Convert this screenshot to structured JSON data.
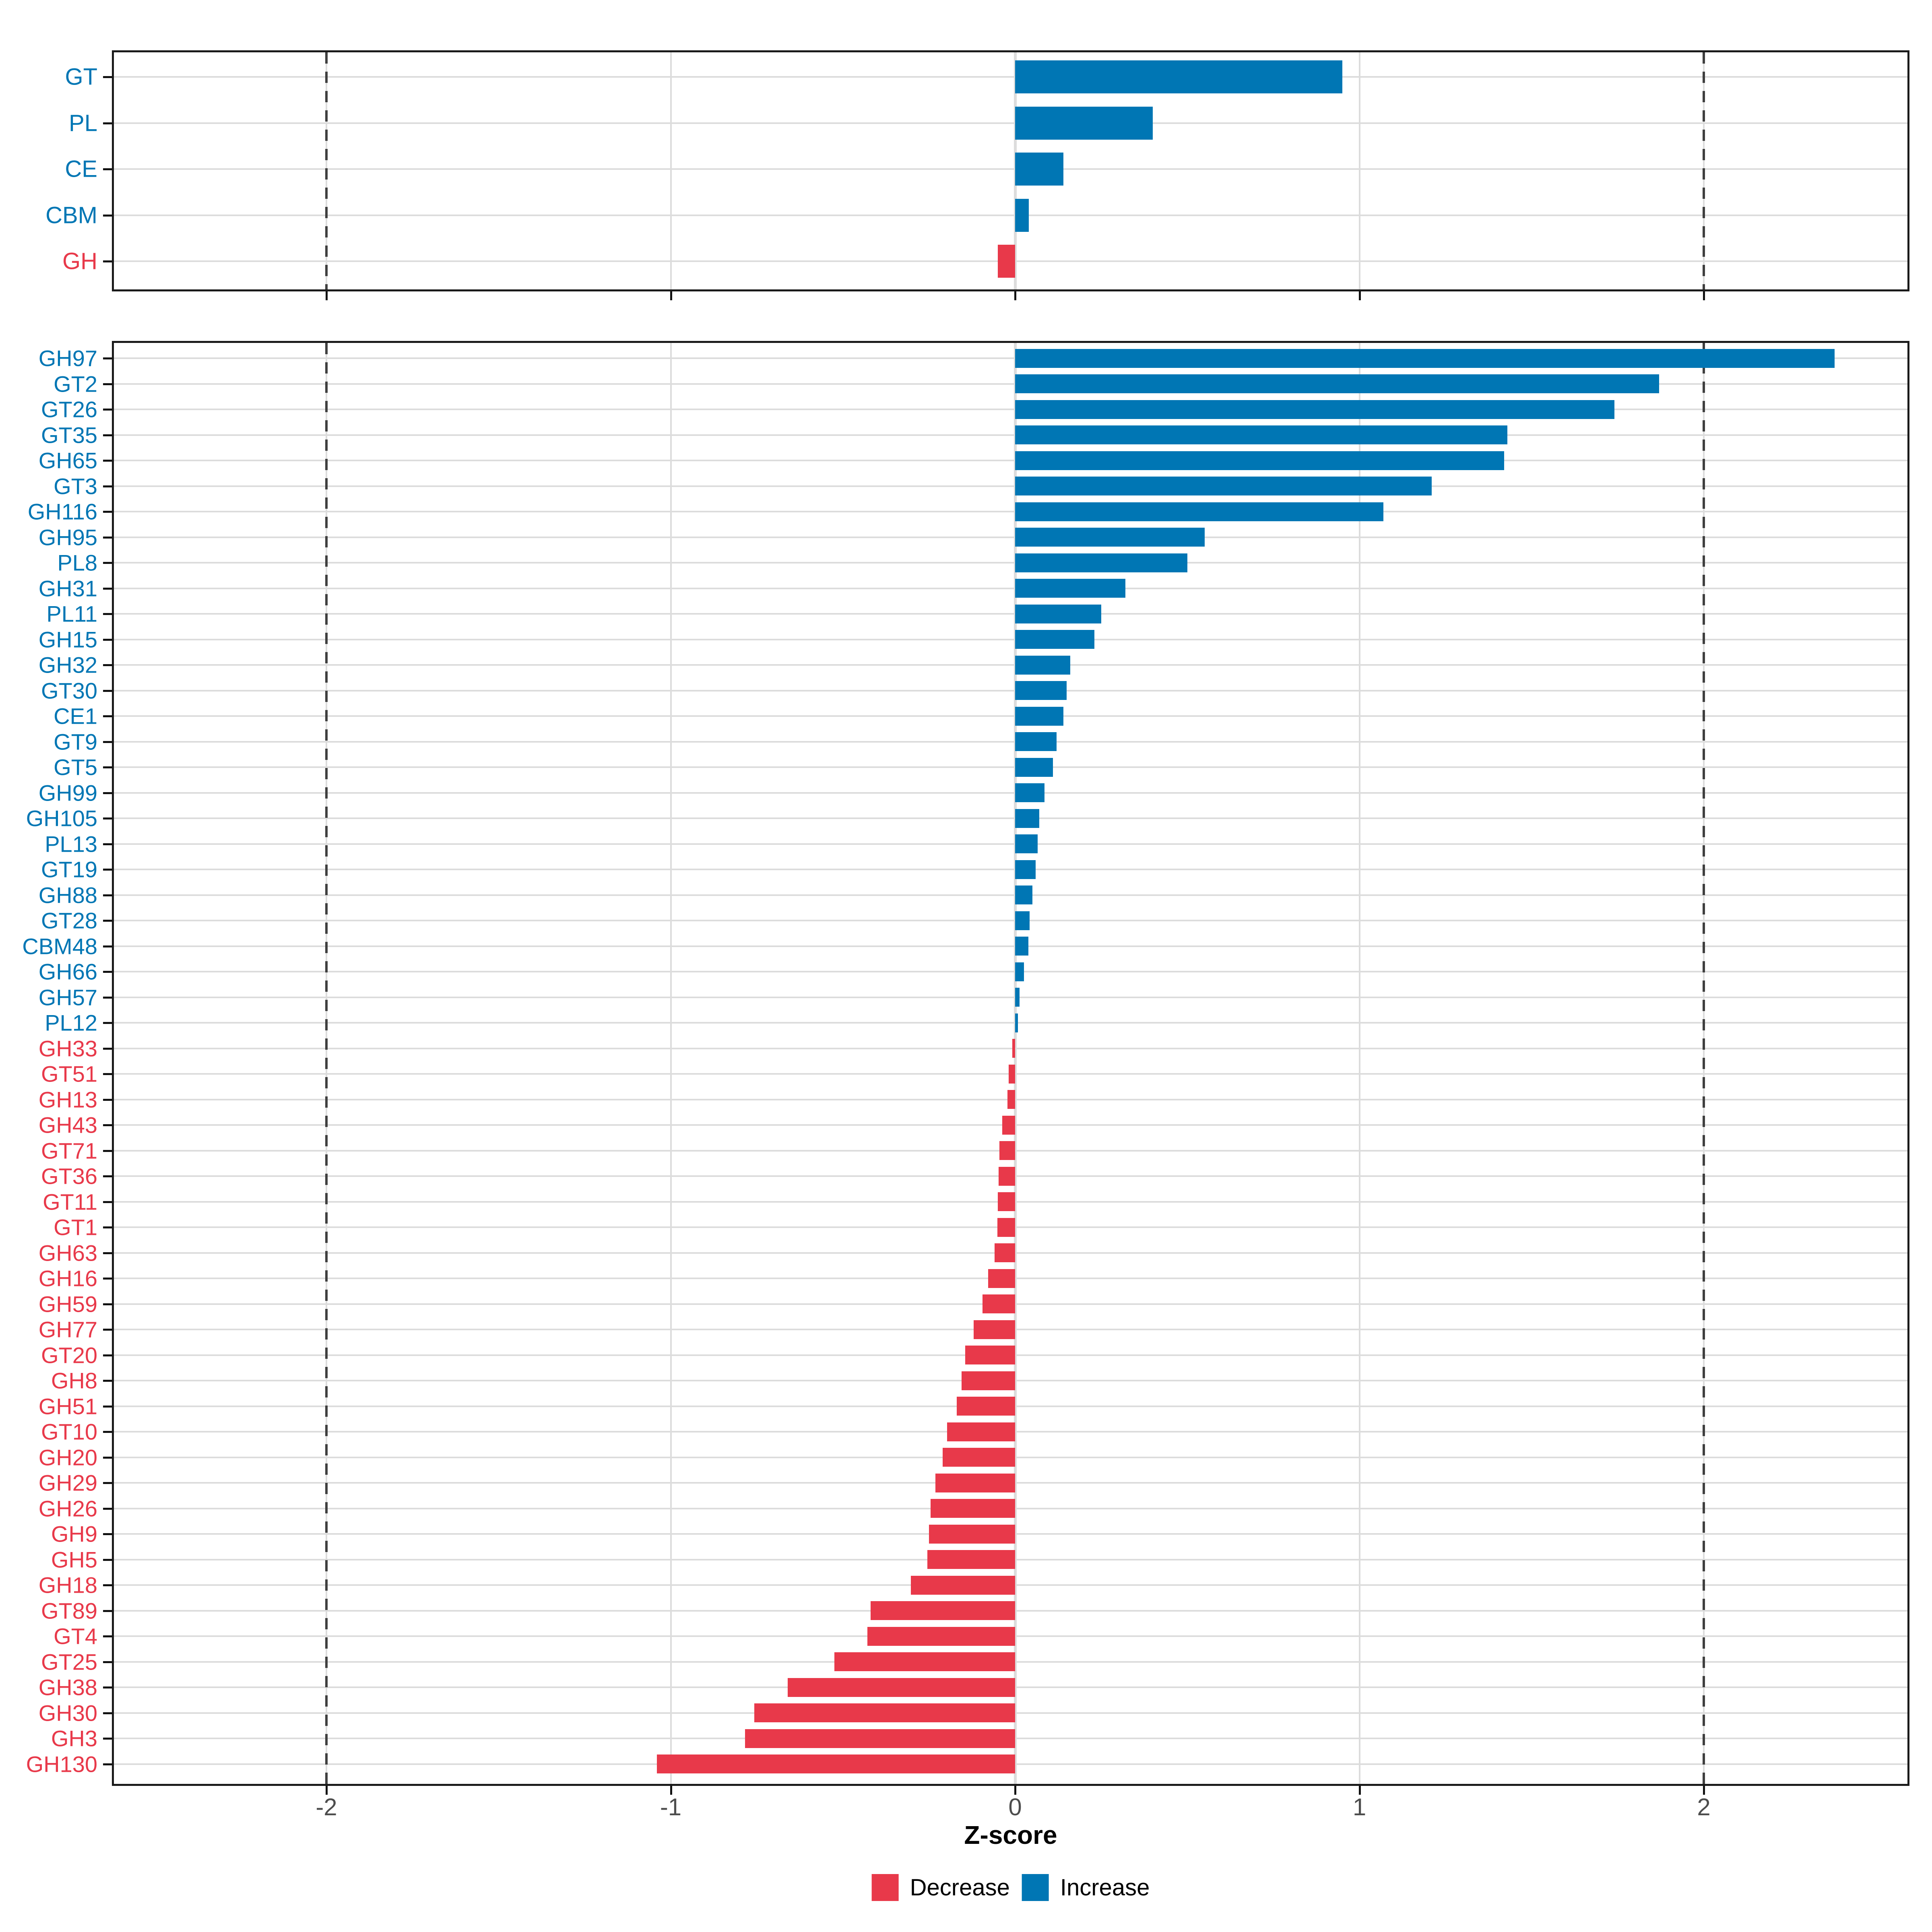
{
  "chart_data": [
    {
      "panel": "category_summary",
      "type": "bar",
      "orientation": "horizontal",
      "categories": [
        "GT",
        "PL",
        "CE",
        "CBM",
        "GH"
      ],
      "values": [
        0.95,
        0.4,
        0.14,
        0.04,
        -0.05
      ],
      "xlim": [
        -2.62,
        2.6
      ],
      "grid": true
    },
    {
      "panel": "cazyme_families",
      "type": "bar",
      "orientation": "horizontal",
      "categories": [
        "GH97",
        "GT2",
        "GT26",
        "GT35",
        "GH65",
        "GT3",
        "GH116",
        "GH95",
        "PL8",
        "GH31",
        "PL11",
        "GH15",
        "GH32",
        "GT30",
        "CE1",
        "GT9",
        "GT5",
        "GH99",
        "GH105",
        "PL13",
        "GT19",
        "GH88",
        "GT28",
        "CBM48",
        "GH66",
        "GH57",
        "PL12",
        "GH33",
        "GT51",
        "GH13",
        "GH43",
        "GT71",
        "GT36",
        "GT11",
        "GT1",
        "GH63",
        "GH16",
        "GH59",
        "GH77",
        "GT20",
        "GH8",
        "GH51",
        "GT10",
        "GH20",
        "GH29",
        "GH26",
        "GH9",
        "GH5",
        "GH18",
        "GT89",
        "GT4",
        "GT25",
        "GH38",
        "GH30",
        "GH3",
        "GH130"
      ],
      "values": [
        2.38,
        1.87,
        1.74,
        1.43,
        1.42,
        1.21,
        1.07,
        0.55,
        0.5,
        0.32,
        0.25,
        0.23,
        0.16,
        0.15,
        0.14,
        0.12,
        0.11,
        0.085,
        0.07,
        0.065,
        0.06,
        0.05,
        0.042,
        0.038,
        0.026,
        0.013,
        0.008,
        -0.008,
        -0.019,
        -0.022,
        -0.037,
        -0.046,
        -0.048,
        -0.05,
        -0.052,
        -0.06,
        -0.078,
        -0.095,
        -0.12,
        -0.145,
        -0.156,
        -0.17,
        -0.198,
        -0.21,
        -0.231,
        -0.245,
        -0.25,
        -0.255,
        -0.303,
        -0.42,
        -0.429,
        -0.525,
        -0.66,
        -0.757,
        -0.784,
        -1.04
      ],
      "xlim": [
        -2.62,
        2.6
      ],
      "grid": true
    }
  ],
  "axis": {
    "xlabel": "Z-score",
    "ticks": [
      "-2",
      "-1",
      "0",
      "1",
      "2"
    ],
    "tick_values": [
      -2,
      -1,
      0,
      1,
      2
    ],
    "dashed_at": [
      -2,
      2
    ]
  },
  "legend": {
    "position": "bottom",
    "items": [
      {
        "label": "Decrease",
        "color": "#E8394A"
      },
      {
        "label": "Increase",
        "color": "#0076B4"
      }
    ]
  },
  "colors": {
    "increase": "#0076B4",
    "decrease": "#E8394A",
    "grid": "#DCDCDC",
    "dashed_line": "#3F3F3F",
    "tick_text": "#4D4D4D",
    "panel_border": "#1A1A1A"
  }
}
